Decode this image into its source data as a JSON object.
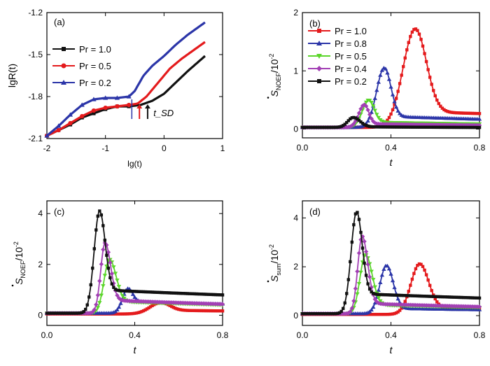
{
  "colors": {
    "black": "#111111",
    "red": "#e41a1c",
    "blue": "#2b35a8",
    "green": "#5bd62a",
    "magenta": "#a23fb4"
  },
  "chart_data": [
    {
      "panel": "(a)",
      "type": "line",
      "xlabel": "lg(t)",
      "ylabel": "lgR(t)",
      "xlim": [
        -2,
        1
      ],
      "ylim": [
        -2.1,
        -1.2
      ],
      "x_ticks": [
        "-2",
        "-1",
        "0",
        "1"
      ],
      "y_ticks": [
        "-2.1",
        "-1.8",
        "-1.5",
        "-1.2"
      ],
      "legend_position": "upper-left",
      "annotation": "t_SD",
      "arrows_at_x": [
        -0.55,
        -0.42,
        -0.28
      ],
      "series": [
        {
          "name": "Pr = 1.0",
          "color": "black",
          "marker": "square",
          "x": [
            -2,
            -1.8,
            -1.6,
            -1.4,
            -1.2,
            -1.0,
            -0.8,
            -0.6,
            -0.4,
            -0.2,
            0.0,
            0.2,
            0.4,
            0.7
          ],
          "y": [
            -2.08,
            -2.04,
            -2.0,
            -1.95,
            -1.92,
            -1.89,
            -1.87,
            -1.87,
            -1.86,
            -1.83,
            -1.78,
            -1.7,
            -1.62,
            -1.51
          ]
        },
        {
          "name": "Pr = 0.5",
          "color": "red",
          "marker": "circle",
          "x": [
            -2,
            -1.8,
            -1.6,
            -1.4,
            -1.2,
            -1.0,
            -0.8,
            -0.6,
            -0.45,
            -0.3,
            -0.1,
            0.1,
            0.3,
            0.5,
            0.7
          ],
          "y": [
            -2.08,
            -2.04,
            -1.99,
            -1.94,
            -1.9,
            -1.88,
            -1.87,
            -1.86,
            -1.85,
            -1.8,
            -1.7,
            -1.6,
            -1.53,
            -1.47,
            -1.41
          ]
        },
        {
          "name": "Pr = 0.2",
          "color": "blue",
          "marker": "triangle",
          "x": [
            -2,
            -1.8,
            -1.6,
            -1.4,
            -1.2,
            -1.0,
            -0.8,
            -0.6,
            -0.5,
            -0.35,
            -0.2,
            0.0,
            0.2,
            0.4,
            0.7
          ],
          "y": [
            -2.08,
            -2.01,
            -1.93,
            -1.86,
            -1.82,
            -1.81,
            -1.81,
            -1.8,
            -1.76,
            -1.65,
            -1.58,
            -1.51,
            -1.43,
            -1.36,
            -1.27
          ]
        }
      ]
    },
    {
      "panel": "(b)",
      "type": "line",
      "xlabel": "t",
      "ylabel": "S_NOEF/10^-2",
      "xlim": [
        0,
        0.8
      ],
      "ylim": [
        -0.15,
        2.0
      ],
      "x_ticks": [
        "0.0",
        "0.4",
        "0.8"
      ],
      "y_ticks": [
        "0",
        "1",
        "2"
      ],
      "legend_position": "upper-left",
      "series": [
        {
          "name": "Pr = 1.0",
          "color": "red",
          "marker": "square",
          "peak_t": 0.51,
          "peak": 1.72,
          "width_l": 0.055,
          "width_r": 0.05,
          "baseline_l": 0.03,
          "baseline_r": 0.3,
          "r_tau": 0.2
        },
        {
          "name": "Pr = 0.8",
          "color": "blue",
          "marker": "triangle",
          "peak_t": 0.37,
          "peak": 1.05,
          "width_l": 0.035,
          "width_r": 0.03,
          "baseline_l": 0.03,
          "baseline_r": 0.22,
          "r_tau": 0.3
        },
        {
          "name": "Pr = 0.5",
          "color": "green",
          "marker": "triangle-down",
          "peak_t": 0.3,
          "peak": 0.5,
          "width_l": 0.03,
          "width_r": 0.025,
          "baseline_l": 0.03,
          "baseline_r": 0.12,
          "r_tau": 0.3
        },
        {
          "name": "Pr = 0.4",
          "color": "magenta",
          "marker": "diamond",
          "peak_t": 0.28,
          "peak": 0.42,
          "width_l": 0.025,
          "width_r": 0.02,
          "baseline_l": 0.03,
          "baseline_r": 0.09,
          "r_tau": 0.3
        },
        {
          "name": "Pr = 0.2",
          "color": "black",
          "marker": "square",
          "peak_t": 0.23,
          "peak": 0.2,
          "width_l": 0.025,
          "width_r": 0.03,
          "baseline_l": 0.03,
          "baseline_r": 0.04,
          "r_tau": 0.3
        }
      ]
    },
    {
      "panel": "(c)",
      "type": "line",
      "xlabel": "t",
      "ylabel": "S_NOEF/10^-2",
      "xlim": [
        0,
        0.8
      ],
      "ylim": [
        -0.4,
        4.5
      ],
      "x_ticks": [
        "0.0",
        "0.4",
        "0.8"
      ],
      "y_ticks": [
        "0",
        "2",
        "4"
      ],
      "series": [
        {
          "name": "Pr = 1.0",
          "color": "red",
          "marker": "square",
          "peak_t": 0.52,
          "peak": 0.5,
          "width_l": 0.05,
          "width_r": 0.04,
          "baseline_l": 0.05,
          "baseline_r": 0.2,
          "r_tau": 0.3
        },
        {
          "name": "Pr = 0.8",
          "color": "blue",
          "marker": "triangle",
          "peak_t": 0.37,
          "peak": 1.05,
          "width_l": 0.025,
          "width_r": 0.02,
          "baseline_l": 0.08,
          "baseline_r": 0.55,
          "r_tau": 0.25
        },
        {
          "name": "Pr = 0.5",
          "color": "green",
          "marker": "triangle-down",
          "peak_t": 0.285,
          "peak": 2.2,
          "width_l": 0.025,
          "width_r": 0.03,
          "baseline_l": 0.08,
          "baseline_r": 0.55,
          "r_tau": 0.3
        },
        {
          "name": "Pr = 0.4",
          "color": "magenta",
          "marker": "diamond",
          "peak_t": 0.265,
          "peak": 2.85,
          "width_l": 0.02,
          "width_r": 0.025,
          "baseline_l": 0.08,
          "baseline_r": 0.6,
          "r_tau": 0.3
        },
        {
          "name": "Pr = 0.2",
          "color": "black",
          "marker": "square",
          "peak_t": 0.24,
          "peak": 4.1,
          "width_l": 0.025,
          "width_r": 0.025,
          "baseline_l": 0.08,
          "baseline_r": 1.0,
          "r_tau": 0.2
        }
      ]
    },
    {
      "panel": "(d)",
      "type": "line",
      "xlabel": "t",
      "ylabel": "S_sum/10^-2",
      "xlim": [
        0,
        0.8
      ],
      "ylim": [
        -0.4,
        4.7
      ],
      "x_ticks": [
        "0.0",
        "0.4",
        "0.8"
      ],
      "y_ticks": [
        "0",
        "2",
        "4"
      ],
      "series": [
        {
          "name": "Pr = 1.0",
          "color": "red",
          "marker": "square",
          "peak_t": 0.53,
          "peak": 2.12,
          "width_l": 0.04,
          "width_r": 0.04,
          "baseline_l": 0.05,
          "baseline_r": 0.3,
          "r_tau": 0.2
        },
        {
          "name": "Pr = 0.8",
          "color": "blue",
          "marker": "triangle",
          "peak_t": 0.38,
          "peak": 2.05,
          "width_l": 0.03,
          "width_r": 0.03,
          "baseline_l": 0.08,
          "baseline_r": 0.3,
          "r_tau": 0.25
        },
        {
          "name": "Pr = 0.5",
          "color": "green",
          "marker": "triangle-down",
          "peak_t": 0.285,
          "peak": 2.5,
          "width_l": 0.025,
          "width_r": 0.03,
          "baseline_l": 0.08,
          "baseline_r": 0.45,
          "r_tau": 0.3
        },
        {
          "name": "Pr = 0.4",
          "color": "magenta",
          "marker": "diamond",
          "peak_t": 0.27,
          "peak": 3.25,
          "width_l": 0.02,
          "width_r": 0.025,
          "baseline_l": 0.08,
          "baseline_r": 0.5,
          "r_tau": 0.3
        },
        {
          "name": "Pr = 0.2",
          "color": "black",
          "marker": "square",
          "peak_t": 0.245,
          "peak": 4.25,
          "width_l": 0.025,
          "width_r": 0.025,
          "baseline_l": 0.08,
          "baseline_r": 0.9,
          "r_tau": 0.2
        }
      ]
    }
  ]
}
